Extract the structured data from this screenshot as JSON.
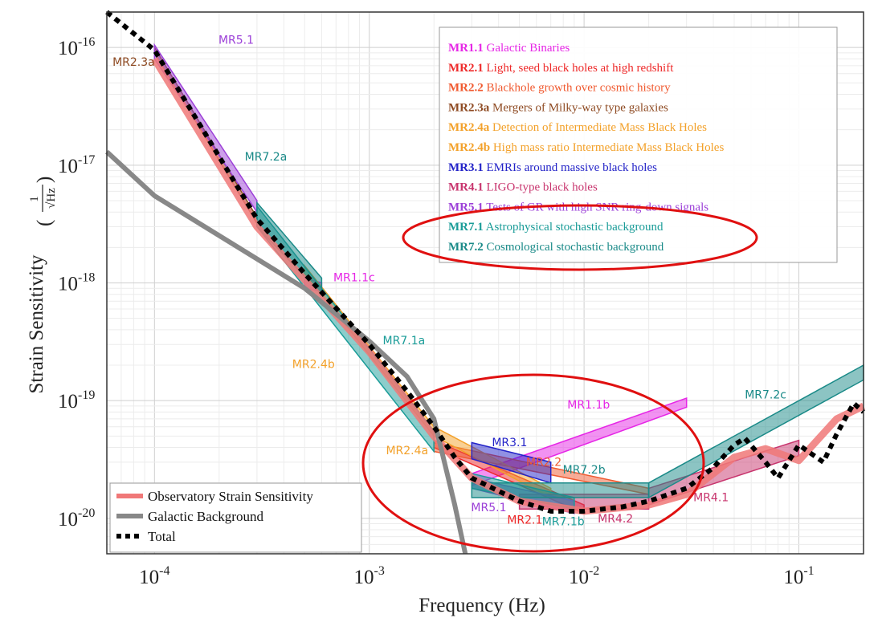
{
  "chart_data": {
    "type": "line",
    "title": "",
    "xlabel": "Frequency (Hz)",
    "ylabel": "Strain Sensitivity",
    "ylabel_unit": {
      "num": "1",
      "den": "√Hz"
    },
    "xscale": "log",
    "yscale": "log",
    "xlim": [
      6e-05,
      0.2
    ],
    "ylim": [
      5e-21,
      2e-16
    ],
    "grid": true,
    "x_ticks": [
      {
        "base": "10",
        "exp": "-4",
        "value": 0.0001
      },
      {
        "base": "10",
        "exp": "-3",
        "value": 0.001
      },
      {
        "base": "10",
        "exp": "-2",
        "value": 0.01
      },
      {
        "base": "10",
        "exp": "-1",
        "value": 0.1
      }
    ],
    "y_ticks": [
      {
        "base": "10",
        "exp": "-16",
        "value": 1e-16
      },
      {
        "base": "10",
        "exp": "-17",
        "value": 1e-17
      },
      {
        "base": "10",
        "exp": "-18",
        "value": 1e-18
      },
      {
        "base": "10",
        "exp": "-19",
        "value": 1e-19
      },
      {
        "base": "10",
        "exp": "-20",
        "value": 1e-20
      }
    ],
    "series": [
      {
        "name": "Observatory Strain Sensitivity",
        "color": "#f07878",
        "x": [
          0.0001,
          0.0003,
          0.001,
          0.002,
          0.003,
          0.005,
          0.01,
          0.02,
          0.03,
          0.05,
          0.07,
          0.1,
          0.15,
          0.2
        ],
        "y": [
          8e-17,
          3e-18,
          2.6e-19,
          5e-20,
          2.2e-20,
          1.4e-20,
          1.15e-20,
          1.3e-20,
          1.6e-20,
          3.3e-20,
          3.9e-20,
          3.1e-20,
          7e-20,
          9e-20
        ]
      },
      {
        "name": "Galactic Background",
        "color": "#888888",
        "x": [
          6e-05,
          0.0001,
          0.0005,
          0.001,
          0.0015,
          0.002,
          0.0025,
          0.0028
        ],
        "y": [
          1.3e-17,
          5.5e-18,
          9e-19,
          3.2e-19,
          1.6e-19,
          7e-20,
          1.3e-20,
          5e-21
        ]
      },
      {
        "name": "Total",
        "color": "#000000",
        "x": [
          6e-05,
          0.0001,
          0.0003,
          0.0005,
          0.001,
          0.0015,
          0.002,
          0.0025,
          0.003,
          0.005,
          0.007,
          0.01,
          0.015,
          0.02,
          0.03,
          0.04,
          0.05,
          0.056,
          0.07,
          0.08,
          0.1,
          0.13,
          0.15,
          0.18,
          0.2
        ],
        "y": [
          2e-16,
          9.5e-17,
          3.5e-18,
          1.2e-18,
          3e-19,
          1.2e-19,
          6e-20,
          3.3e-20,
          2.2e-20,
          1.4e-20,
          1.15e-20,
          1.15e-20,
          1.25e-20,
          1.4e-20,
          1.8e-20,
          2.7e-20,
          4.2e-20,
          4.8e-20,
          3e-20,
          2.2e-20,
          4.2e-20,
          3e-20,
          5.2e-20,
          9.5e-20,
          8e-20
        ]
      }
    ],
    "requirement_bands": [
      {
        "label": "MR1.1b",
        "code": "MR1.1",
        "x": [
          0.003,
          0.03
        ],
        "y_lo": [
          1.9e-20,
          8.8e-20
        ],
        "y_hi": [
          2.4e-20,
          1.05e-19
        ]
      },
      {
        "label": "MR1.1c",
        "code": "MR1.1",
        "x": [
          0.0005,
          0.0006
        ],
        "y_lo": [
          9e-19,
          8.5e-19
        ],
        "y_hi": [
          1.1e-18,
          1e-18
        ]
      },
      {
        "label": "MR2.1",
        "code": "MR2.1",
        "x": [
          0.002,
          0.01
        ],
        "y_lo": [
          4e-20,
          1.1e-20
        ],
        "y_hi": [
          4.6e-20,
          1.3e-20
        ]
      },
      {
        "label": "MR2.2",
        "code": "MR2.2",
        "x": [
          0.002,
          0.02
        ],
        "y_lo": [
          3.7e-20,
          1.6e-20
        ],
        "y_hi": [
          4.4e-20,
          1.8e-20
        ]
      },
      {
        "label": "MR2.3a",
        "code": "MR2.3a",
        "x": [
          0.0001,
          0.0003
        ],
        "y_lo": [
          9e-17,
          3.2e-18
        ],
        "y_hi": [
          1e-16,
          3.6e-18
        ]
      },
      {
        "label": "MR2.4a",
        "code": "MR2.4a",
        "x": [
          0.002,
          0.007
        ],
        "y_lo": [
          5e-20,
          1.5e-20
        ],
        "y_hi": [
          6e-20,
          1.8e-20
        ]
      },
      {
        "label": "MR2.4b",
        "code": "MR2.4b",
        "x": [
          0.0005,
          0.002
        ],
        "y_lo": [
          1.2e-18,
          5e-20
        ],
        "y_hi": [
          1.4e-18,
          6e-20
        ]
      },
      {
        "label": "MR3.1",
        "code": "MR3.1",
        "x": [
          0.003,
          0.007
        ],
        "y_lo": [
          3.2e-20,
          2e-20
        ],
        "y_hi": [
          4.4e-20,
          3e-20
        ]
      },
      {
        "label": "MR4.1",
        "code": "MR4.1",
        "x": [
          0.02,
          0.1
        ],
        "y_lo": [
          1.3e-20,
          3.4e-20
        ],
        "y_hi": [
          1.8e-20,
          4.6e-20
        ]
      },
      {
        "label": "MR4.2",
        "code": "MR4.1",
        "x": [
          0.005,
          0.02
        ],
        "y_lo": [
          1.2e-20,
          1.2e-20
        ],
        "y_hi": [
          1.6e-20,
          1.6e-20
        ]
      },
      {
        "label": "MR5.1",
        "code": "MR5.1",
        "x": [
          0.0001,
          0.0003
        ],
        "y_lo": [
          8e-17,
          4e-18
        ],
        "y_hi": [
          1.05e-16,
          5e-18
        ]
      },
      {
        "label": "MR5.1",
        "code": "MR5.1",
        "x": [
          0.003,
          0.009
        ],
        "y_lo": [
          1.8e-20,
          1.1e-20
        ],
        "y_hi": [
          2.2e-20,
          1.4e-20
        ]
      },
      {
        "label": "MR7.1a",
        "code": "MR7.1",
        "x": [
          0.0003,
          0.002
        ],
        "y_lo": [
          3e-18,
          3.7e-20
        ],
        "y_hi": [
          4.5e-18,
          5.5e-20
        ]
      },
      {
        "label": "MR7.1b",
        "code": "MR7.1",
        "x": [
          0.003,
          0.009
        ],
        "y_lo": [
          1.8e-20,
          1.2e-20
        ],
        "y_hi": [
          2.4e-20,
          1.5e-20
        ]
      },
      {
        "label": "MR7.2a",
        "code": "MR7.2",
        "x": [
          0.0003,
          0.0006
        ],
        "y_lo": [
          3e-18,
          8e-19
        ],
        "y_hi": [
          4.8e-18,
          1.1e-18
        ]
      },
      {
        "label": "MR7.2b",
        "code": "MR7.2",
        "x": [
          0.003,
          0.02
        ],
        "y_lo": [
          1.5e-20,
          1.5e-20
        ],
        "y_hi": [
          2e-20,
          2e-20
        ]
      },
      {
        "label": "MR7.2c",
        "code": "MR7.2",
        "x": [
          0.02,
          0.2
        ],
        "y_lo": [
          1.5e-20,
          1.5e-19
        ],
        "y_hi": [
          2e-20,
          2e-19
        ]
      }
    ],
    "band_label_positions": [
      {
        "text": "MR2.3a",
        "code": "MR2.3a",
        "x": 8e-05,
        "y": 7e-17
      },
      {
        "text": "MR5.1",
        "code": "MR5.1",
        "x": 0.00024,
        "y": 1.08e-16
      },
      {
        "text": "MR7.2a",
        "code": "MR7.2",
        "x": 0.00033,
        "y": 1.1e-17
      },
      {
        "text": "MR1.1c",
        "code": "MR1.1",
        "x": 0.00085,
        "y": 1.03e-18
      },
      {
        "text": "MR7.1a",
        "code": "MR7.1",
        "x": 0.00145,
        "y": 3e-19
      },
      {
        "text": "MR2.4b",
        "code": "MR2.4b",
        "x": 0.00055,
        "y": 1.9e-19
      },
      {
        "text": "MR2.4a",
        "code": "MR2.4a",
        "x": 0.0015,
        "y": 3.5e-20
      },
      {
        "text": "MR1.1b",
        "code": "MR1.1",
        "x": 0.0105,
        "y": 8.6e-20
      },
      {
        "text": "MR3.1",
        "code": "MR3.1",
        "x": 0.0045,
        "y": 4.1e-20
      },
      {
        "text": "MR2.2",
        "code": "MR2.2",
        "x": 0.0065,
        "y": 2.8e-20
      },
      {
        "text": "MR7.2b",
        "code": "MR7.2",
        "x": 0.01,
        "y": 2.4e-20
      },
      {
        "text": "MR7.2c",
        "code": "MR7.2",
        "x": 0.07,
        "y": 1.04e-19
      },
      {
        "text": "MR4.1",
        "code": "MR4.1",
        "x": 0.039,
        "y": 1.4e-20
      },
      {
        "text": "MR5.1",
        "code": "MR5.1",
        "x": 0.0036,
        "y": 1.15e-20
      },
      {
        "text": "MR2.1",
        "code": "MR2.1",
        "x": 0.0053,
        "y": 9e-21
      },
      {
        "text": "MR7.1b",
        "code": "MR7.1",
        "x": 0.008,
        "y": 8.7e-21
      },
      {
        "text": "MR4.2",
        "code": "MR4.1",
        "x": 0.014,
        "y": 9.2e-21
      }
    ],
    "legend_top_right": [
      {
        "code": "MR1.1",
        "text": "Galactic Binaries",
        "color": "#e626e6"
      },
      {
        "code": "MR2.1",
        "text": "Light, seed black holes at high redshift",
        "color": "#ee2a2a"
      },
      {
        "code": "MR2.2",
        "text": "Blackhole growth over cosmic history",
        "color": "#f05a30"
      },
      {
        "code": "MR2.3a",
        "text": "Mergers of Milky-way type galaxies",
        "color": "#8e4a22"
      },
      {
        "code": "MR2.4a",
        "text": "Detection of Intermediate Mass Black Holes",
        "color": "#f3a12a"
      },
      {
        "code": "MR2.4b",
        "text": "High mass ratio Intermediate Mass Black Holes",
        "color": "#f3a12a"
      },
      {
        "code": "MR3.1",
        "text": "EMRIs around massive black holes",
        "color": "#2424c8"
      },
      {
        "code": "MR4.1",
        "text": "LIGO-type black holes",
        "color": "#c8356e"
      },
      {
        "code": "MR5.1",
        "text": "Tests of GR with high SNR ring-down signals",
        "color": "#9c40d8"
      },
      {
        "code": "MR7.1",
        "text": "Astrophysical stochastic background",
        "color": "#1a9c98"
      },
      {
        "code": "MR7.2",
        "text": "Cosmological stochastic background",
        "color": "#1a8a88"
      }
    ],
    "legend_bottom_left": [
      {
        "text": "Observatory Strain Sensitivity",
        "color": "#f07878",
        "style": "solid"
      },
      {
        "text": "Galactic Background",
        "color": "#888888",
        "style": "solid"
      },
      {
        "text": "Total",
        "color": "#000000",
        "style": "dotted"
      }
    ],
    "highlight_color": "#e01010"
  }
}
